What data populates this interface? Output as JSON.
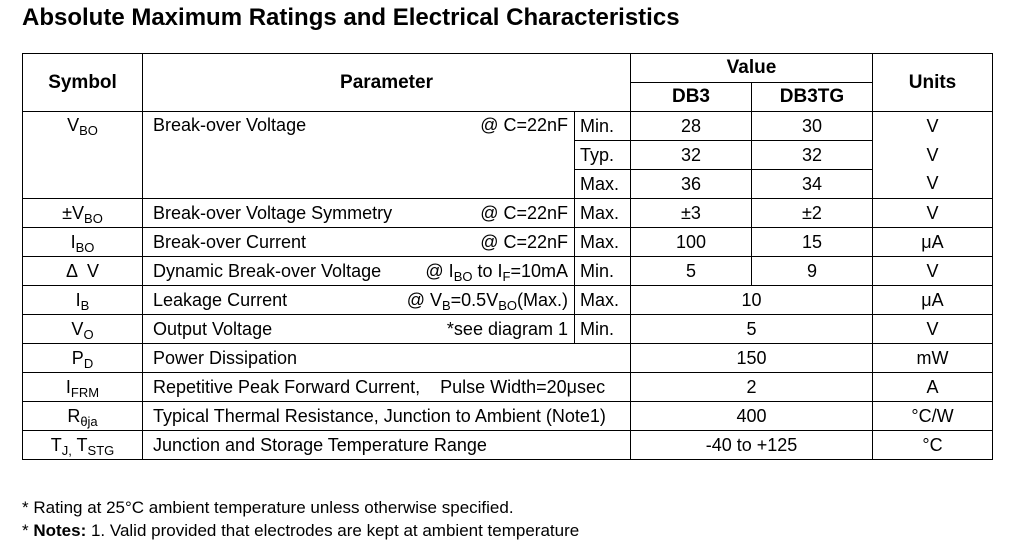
{
  "title": "Absolute Maximum Ratings and Electrical Characteristics",
  "headers": {
    "symbol": "Symbol",
    "parameter": "Parameter",
    "value": "Value",
    "db3": "DB3",
    "db3tg": "DB3TG",
    "units": "Units"
  },
  "rows": {
    "vbo": {
      "sym": "V",
      "sym_sub": "BO",
      "param": "Break-over Voltage",
      "cond": "@ C=22nF",
      "lines": [
        {
          "limit": "Min.",
          "db3": "28",
          "db3tg": "30",
          "unit": "V"
        },
        {
          "limit": "Typ.",
          "db3": "32",
          "db3tg": "32",
          "unit": "V"
        },
        {
          "limit": "Max.",
          "db3": "36",
          "db3tg": "34",
          "unit": "V"
        }
      ]
    },
    "sym": {
      "sym": "±V",
      "sym_sub": "BO",
      "param": "Break-over Voltage Symmetry",
      "cond": "@ C=22nF",
      "limit": "Max.",
      "db3": "±3",
      "db3tg": "±2",
      "unit": "V"
    },
    "ibo": {
      "sym": "I",
      "sym_sub": "BO",
      "param": "Break-over Current",
      "cond": "@ C=22nF",
      "limit": "Max.",
      "db3": "100",
      "db3tg": "15",
      "unit": "μA"
    },
    "dv": {
      "sym": "Δ  V",
      "param": "Dynamic Break-over Voltage",
      "cond_pre": "@ I",
      "cond_sub1": "BO",
      "cond_mid": " to I",
      "cond_sub2": "F",
      "cond_post": "=10mA",
      "limit": "Min.",
      "db3": "5",
      "db3tg": "9",
      "unit": "V"
    },
    "ib": {
      "sym": "I",
      "sym_sub": "B",
      "param": "Leakage Current",
      "cond_pre": "@ V",
      "cond_sub1": "B",
      "cond_mid": "=0.5V",
      "cond_sub2": "BO",
      "cond_post": "(Max.)",
      "limit": "Max.",
      "value": "10",
      "unit": "μA"
    },
    "vo": {
      "sym": "V",
      "sym_sub": "O",
      "param": "Output Voltage",
      "cond": "*see diagram 1",
      "limit": "Min.",
      "value": "5",
      "unit": "V"
    },
    "pd": {
      "sym": "P",
      "sym_sub": "D",
      "param": "Power Dissipation",
      "value": "150",
      "unit": "mW"
    },
    "ifrm": {
      "sym": "I",
      "sym_sub": "FRM",
      "param": "Repetitive Peak Forward Current,    Pulse Width=20μsec",
      "value": "2",
      "unit": "A"
    },
    "rth": {
      "sym": "R",
      "sym_sub": "θja",
      "param": "Typical Thermal Resistance, Junction to Ambient (Note1)",
      "value": "400",
      "unit": "°C/W"
    },
    "tj": {
      "sym": "T",
      "sym_sub1": "J,",
      "sym_mid": " T",
      "sym_sub2": "STG",
      "param": "Junction and Storage Temperature Range",
      "value": "-40 to +125",
      "unit": "°C"
    }
  },
  "notes": {
    "line1": "* Rating at 25°C ambient temperature unless otherwise specified.",
    "line2_prefix": "* ",
    "line2_bold": "Notes:",
    "line2_text": " 1. Valid provided that electrodes are kept at ambient temperature"
  }
}
